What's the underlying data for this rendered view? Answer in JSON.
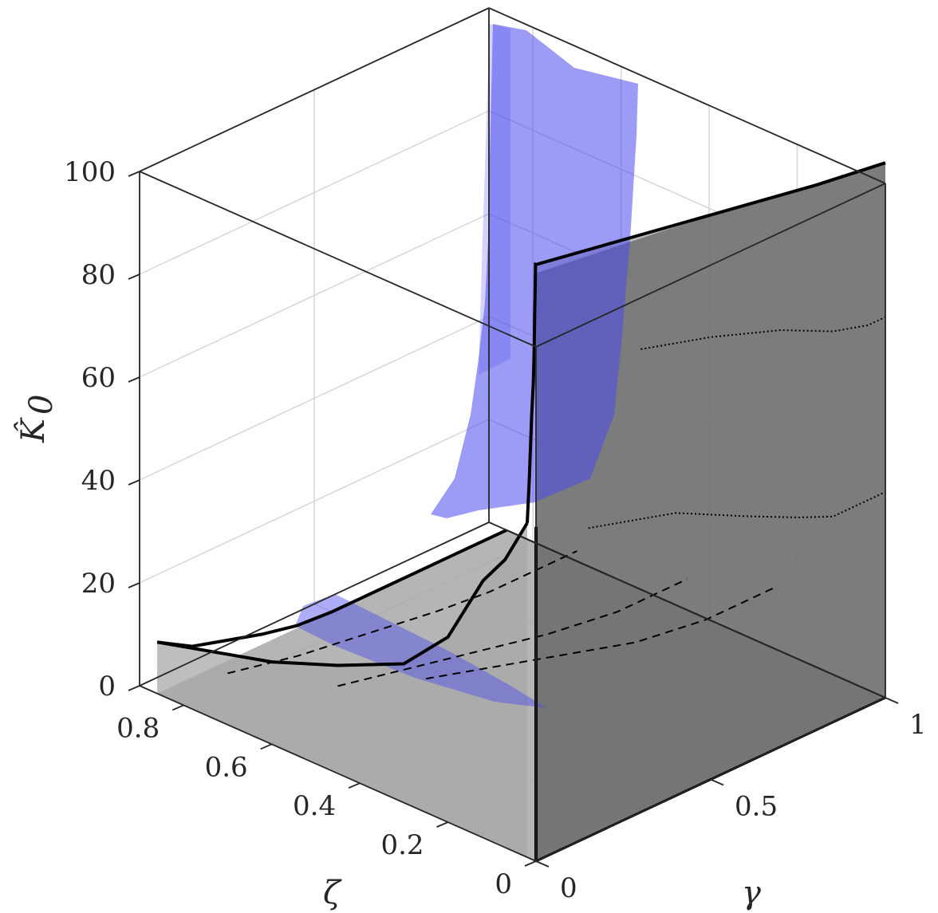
{
  "chart_data": {
    "type": "surface3d",
    "title": "",
    "xlabel": "γ",
    "ylabel": "ζ",
    "zlabel": "K̂",
    "zlabel_sub": "0",
    "xlim": [
      0,
      1
    ],
    "ylim": [
      0,
      0.9
    ],
    "zlim": [
      0,
      100
    ],
    "xticks": [
      "0",
      "0.5",
      "1"
    ],
    "yticks": [
      "0",
      "0.2",
      "0.4",
      "0.6",
      "0.8"
    ],
    "zticks": [
      "0",
      "20",
      "40",
      "60",
      "80",
      "100"
    ],
    "grid": true,
    "box": true,
    "colors": {
      "gray_floor": "#a8a8a8",
      "gray_wall": "#6e6e6e",
      "blue_region": "#4b4bf0",
      "outline": "#000000",
      "grid": "#d6d6d6",
      "box": "#262626"
    },
    "series": [
      {
        "kind": "boundary",
        "style": "solid",
        "points": [
          [
            0,
            0.86,
            10
          ],
          [
            0.1,
            0.86,
            6
          ],
          [
            0.2,
            0.86,
            4
          ],
          [
            0.3,
            0.86,
            2
          ],
          [
            0.4,
            0.86,
            0.5
          ],
          [
            0.5,
            0.86,
            0
          ],
          [
            0.7,
            0.86,
            0
          ],
          [
            0.85,
            0.86,
            0
          ],
          [
            1,
            0.86,
            0
          ]
        ]
      },
      {
        "kind": "boundary",
        "style": "solid",
        "points": [
          [
            0,
            0.86,
            10
          ],
          [
            0,
            0.6,
            16
          ],
          [
            0,
            0.45,
            21
          ],
          [
            0,
            0.3,
            27
          ],
          [
            0,
            0.2,
            36
          ],
          [
            0,
            0.12,
            50
          ],
          [
            0,
            0.07,
            56
          ],
          [
            0,
            0.02,
            65
          ]
        ]
      },
      {
        "kind": "boundary",
        "style": "solid",
        "points": [
          [
            0,
            0.02,
            65
          ],
          [
            0,
            0.015,
            74
          ],
          [
            0,
            0.01,
            86
          ],
          [
            0,
            0.006,
            93
          ],
          [
            0,
            0.004,
            100
          ],
          [
            0,
            0.003,
            106
          ],
          [
            0,
            0.002,
            111
          ],
          [
            0,
            0.001,
            116
          ],
          [
            0,
            0,
            116
          ],
          [
            0.4,
            0,
            111
          ],
          [
            0.8,
            0,
            106
          ],
          [
            1,
            0,
            104
          ]
        ]
      },
      {
        "kind": "contour",
        "style": "dashed",
        "points": [
          [
            0,
            0.7,
            10
          ],
          [
            0.2,
            0.7,
            7
          ],
          [
            0.4,
            0.7,
            5
          ],
          [
            0.6,
            0.7,
            3
          ],
          [
            0.75,
            0.7,
            2
          ],
          [
            0.9,
            0.7,
            2
          ],
          [
            1,
            0.7,
            2
          ]
        ]
      },
      {
        "kind": "contour",
        "style": "dashed",
        "points": [
          [
            0,
            0.45,
            17
          ],
          [
            0.2,
            0.45,
            14
          ],
          [
            0.4,
            0.45,
            11
          ],
          [
            0.6,
            0.45,
            8
          ],
          [
            0.8,
            0.45,
            6
          ],
          [
            1,
            0.45,
            6
          ]
        ]
      },
      {
        "kind": "contour",
        "style": "dashed",
        "points": [
          [
            0,
            0.25,
            26
          ],
          [
            0.2,
            0.25,
            22
          ],
          [
            0.4,
            0.25,
            18
          ],
          [
            0.6,
            0.25,
            14
          ],
          [
            0.8,
            0.25,
            12
          ],
          [
            1,
            0.25,
            12
          ]
        ]
      },
      {
        "kind": "contour",
        "style": "dotted",
        "points": [
          [
            0.15,
            0,
            60
          ],
          [
            0.4,
            0,
            55
          ],
          [
            0.6,
            0,
            48
          ],
          [
            0.75,
            0,
            43
          ],
          [
            0.85,
            0,
            40
          ],
          [
            0.95,
            0,
            40
          ],
          [
            1,
            0,
            40
          ]
        ]
      },
      {
        "kind": "contour",
        "style": "dotted",
        "points": [
          [
            0.3,
            0,
            90
          ],
          [
            0.5,
            0,
            86
          ],
          [
            0.7,
            0,
            81
          ],
          [
            0.85,
            0,
            76
          ],
          [
            0.95,
            0,
            74
          ],
          [
            1,
            0,
            74
          ]
        ]
      }
    ]
  }
}
